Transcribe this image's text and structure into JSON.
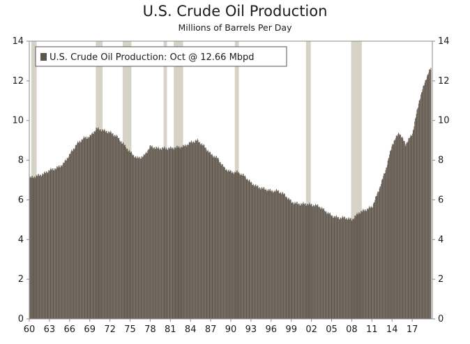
{
  "chart_data": {
    "type": "bar",
    "title": "U.S. Crude Oil Production",
    "subtitle": "Millions of Barrels Per Day",
    "legend": {
      "label": "U.S. Crude Oil Production: Oct @ 12.66 Mbpd",
      "position": "top-left"
    },
    "xlabel": "",
    "ylabel": "",
    "ylim": [
      0,
      14
    ],
    "xlim": [
      1960,
      2020
    ],
    "y_ticks": [
      0,
      2,
      4,
      6,
      8,
      10,
      12,
      14
    ],
    "x_tick_labels": [
      "60",
      "63",
      "66",
      "69",
      "72",
      "75",
      "78",
      "81",
      "84",
      "87",
      "90",
      "93",
      "96",
      "99",
      "02",
      "05",
      "08",
      "11",
      "14",
      "17"
    ],
    "x_tick_years": [
      1960,
      1963,
      1966,
      1969,
      1972,
      1975,
      1978,
      1981,
      1984,
      1987,
      1990,
      1993,
      1996,
      1999,
      2002,
      2005,
      2008,
      2011,
      2014,
      2017
    ],
    "recessions": [
      [
        1960.3,
        1961.1
      ],
      [
        1969.9,
        1970.9
      ],
      [
        1973.9,
        1975.2
      ],
      [
        1980.0,
        1980.5
      ],
      [
        1981.5,
        1982.9
      ],
      [
        1990.6,
        1991.2
      ],
      [
        2001.2,
        2001.9
      ],
      [
        2007.9,
        2009.5
      ]
    ],
    "colors": {
      "bars": "#5e554a",
      "recession": "#d6d2c6",
      "axis": "#888888"
    },
    "series": [
      {
        "name": "U.S. Crude Oil Production",
        "points": [
          [
            1960,
            7.1
          ],
          [
            1961,
            7.2
          ],
          [
            1962,
            7.3
          ],
          [
            1963,
            7.5
          ],
          [
            1964,
            7.6
          ],
          [
            1965,
            7.8
          ],
          [
            1966,
            8.3
          ],
          [
            1967,
            8.8
          ],
          [
            1968,
            9.1
          ],
          [
            1969,
            9.2
          ],
          [
            1970,
            9.6
          ],
          [
            1971,
            9.5
          ],
          [
            1972,
            9.4
          ],
          [
            1973,
            9.2
          ],
          [
            1974,
            8.8
          ],
          [
            1975,
            8.4
          ],
          [
            1976,
            8.1
          ],
          [
            1977,
            8.2
          ],
          [
            1978,
            8.7
          ],
          [
            1979,
            8.6
          ],
          [
            1980,
            8.6
          ],
          [
            1981,
            8.6
          ],
          [
            1982,
            8.65
          ],
          [
            1983,
            8.7
          ],
          [
            1984,
            8.9
          ],
          [
            1985,
            9.0
          ],
          [
            1986,
            8.7
          ],
          [
            1987,
            8.3
          ],
          [
            1988,
            8.1
          ],
          [
            1989,
            7.6
          ],
          [
            1990,
            7.4
          ],
          [
            1991,
            7.4
          ],
          [
            1992,
            7.2
          ],
          [
            1993,
            6.85
          ],
          [
            1994,
            6.65
          ],
          [
            1995,
            6.55
          ],
          [
            1996,
            6.45
          ],
          [
            1997,
            6.45
          ],
          [
            1998,
            6.25
          ],
          [
            1999,
            5.9
          ],
          [
            2000,
            5.8
          ],
          [
            2001,
            5.8
          ],
          [
            2002,
            5.75
          ],
          [
            2003,
            5.7
          ],
          [
            2004,
            5.45
          ],
          [
            2005,
            5.2
          ],
          [
            2006,
            5.1
          ],
          [
            2007,
            5.1
          ],
          [
            2008,
            5.0
          ],
          [
            2009,
            5.35
          ],
          [
            2010,
            5.5
          ],
          [
            2011,
            5.65
          ],
          [
            2012,
            6.5
          ],
          [
            2013,
            7.5
          ],
          [
            2014,
            8.8
          ],
          [
            2015,
            9.4
          ],
          [
            2016,
            8.8
          ],
          [
            2017,
            9.35
          ],
          [
            2018,
            11.0
          ],
          [
            2019,
            12.1
          ],
          [
            2019.75,
            12.66
          ]
        ]
      }
    ]
  }
}
